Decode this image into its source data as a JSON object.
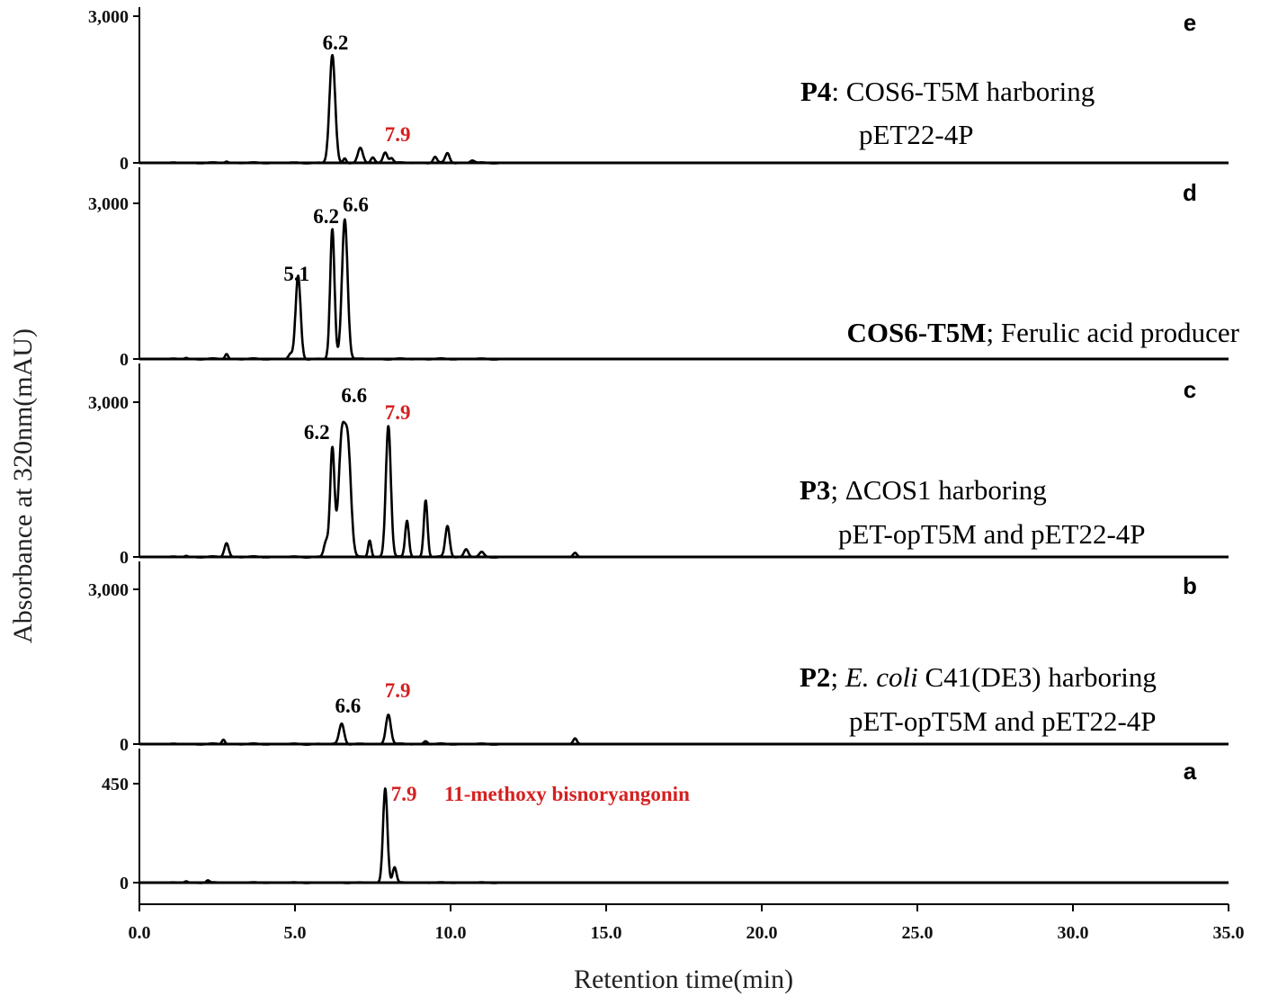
{
  "chart_data": {
    "type": "line",
    "xlabel": "Retention  time(min)",
    "ylabel": "Absorbance at 320nm(mAU)",
    "xlim": [
      0,
      35
    ],
    "x_ticks": [
      "0.0",
      "5.0",
      "10.0",
      "15.0",
      "20.0",
      "25.0",
      "30.0",
      "35.0"
    ],
    "grid": false,
    "colors": {
      "trace": "#000000",
      "highlight": "#d62020",
      "text": "#000000",
      "axis": "#000000"
    },
    "panels": [
      {
        "id": "e",
        "letter": "e",
        "ylim": [
          0,
          3000
        ],
        "y_ticks": [
          "3,000",
          "0"
        ],
        "annotation": {
          "bold": "P4",
          "rest": ": COS6-T5M harboring",
          "line2": "pET22-4P"
        },
        "peak_labels": [
          {
            "text": "6.2",
            "x": 6.2,
            "color": "#000000"
          },
          {
            "text": "7.9",
            "x": 7.9,
            "color": "#d62020"
          }
        ],
        "peaks": [
          {
            "x": 2.8,
            "h": 30,
            "w": 0.05
          },
          {
            "x": 6.2,
            "h": 2200,
            "w": 0.09
          },
          {
            "x": 6.6,
            "h": 100,
            "w": 0.05
          },
          {
            "x": 7.1,
            "h": 300,
            "w": 0.08
          },
          {
            "x": 7.5,
            "h": 110,
            "w": 0.06
          },
          {
            "x": 7.9,
            "h": 220,
            "w": 0.07
          },
          {
            "x": 8.1,
            "h": 100,
            "w": 0.06
          },
          {
            "x": 9.5,
            "h": 120,
            "w": 0.06
          },
          {
            "x": 9.9,
            "h": 200,
            "w": 0.07
          },
          {
            "x": 10.7,
            "h": 50,
            "w": 0.07
          }
        ]
      },
      {
        "id": "d",
        "letter": "d",
        "ylim": [
          0,
          3000
        ],
        "y_ticks": [
          "3,000",
          "0"
        ],
        "annotation": {
          "bold": "COS6-T5M",
          "rest": "; Ferulic acid producer",
          "line2": ""
        },
        "peak_labels": [
          {
            "text": "5.1",
            "x": 5.1,
            "color": "#000000"
          },
          {
            "text": "6.2",
            "x": 6.2,
            "color": "#000000"
          },
          {
            "text": "6.6",
            "x": 6.6,
            "color": "#000000"
          }
        ],
        "peaks": [
          {
            "x": 1.5,
            "h": 20,
            "w": 0.05
          },
          {
            "x": 2.8,
            "h": 100,
            "w": 0.05
          },
          {
            "x": 4.85,
            "h": 90,
            "w": 0.06
          },
          {
            "x": 5.1,
            "h": 1600,
            "w": 0.08
          },
          {
            "x": 6.2,
            "h": 2500,
            "w": 0.07
          },
          {
            "x": 6.6,
            "h": 2700,
            "w": 0.09
          }
        ]
      },
      {
        "id": "c",
        "letter": "c",
        "ylim": [
          0,
          3000
        ],
        "y_ticks": [
          "3,000",
          "0"
        ],
        "annotation": {
          "bold": "P3",
          "rest": "; ΔCOS1 harboring",
          "line2": "pET-opT5M  and pET22-4P"
        },
        "peak_labels": [
          {
            "text": "6.2",
            "x": 6.2,
            "color": "#000000"
          },
          {
            "text": "6.6",
            "x": 6.6,
            "color": "#000000"
          },
          {
            "text": "7.9",
            "x": 7.9,
            "color": "#d62020"
          }
        ],
        "peaks": [
          {
            "x": 1.5,
            "h": 20,
            "w": 0.05
          },
          {
            "x": 2.8,
            "h": 270,
            "w": 0.07
          },
          {
            "x": 6.0,
            "h": 300,
            "w": 0.07
          },
          {
            "x": 6.2,
            "h": 2100,
            "w": 0.07
          },
          {
            "x": 6.5,
            "h": 2200,
            "w": 0.1
          },
          {
            "x": 6.7,
            "h": 2100,
            "w": 0.1
          },
          {
            "x": 7.4,
            "h": 320,
            "w": 0.05
          },
          {
            "x": 8.0,
            "h": 2550,
            "w": 0.08
          },
          {
            "x": 8.6,
            "h": 700,
            "w": 0.06
          },
          {
            "x": 9.2,
            "h": 1100,
            "w": 0.06
          },
          {
            "x": 9.9,
            "h": 600,
            "w": 0.07
          },
          {
            "x": 10.5,
            "h": 150,
            "w": 0.07
          },
          {
            "x": 11.0,
            "h": 90,
            "w": 0.07
          },
          {
            "x": 14.0,
            "h": 80,
            "w": 0.06
          }
        ]
      },
      {
        "id": "b",
        "letter": "b",
        "ylim": [
          0,
          3000
        ],
        "y_ticks": [
          "3,000",
          "0"
        ],
        "annotation": {
          "bold": "P2",
          "rest": "; ",
          "italic": "E. coli",
          "rest2": " C41(DE3) harboring",
          "line2": "pET-opT5M  and pET22-4P"
        },
        "peak_labels": [
          {
            "text": "6.6",
            "x": 6.6,
            "color": "#000000"
          },
          {
            "text": "7.9",
            "x": 7.9,
            "color": "#d62020"
          }
        ],
        "peaks": [
          {
            "x": 2.7,
            "h": 90,
            "w": 0.05
          },
          {
            "x": 6.5,
            "h": 400,
            "w": 0.08
          },
          {
            "x": 8.0,
            "h": 580,
            "w": 0.08
          },
          {
            "x": 9.2,
            "h": 60,
            "w": 0.06
          },
          {
            "x": 14.0,
            "h": 110,
            "w": 0.06
          }
        ]
      },
      {
        "id": "a",
        "letter": "a",
        "ylim": [
          0,
          450
        ],
        "y_ticks": [
          "450",
          "0"
        ],
        "annotation": {
          "bold": "",
          "rest": "",
          "line2": ""
        },
        "peak_labels": [
          {
            "text": "7.9",
            "x": 7.9,
            "color": "#d62020"
          },
          {
            "text": "11-methoxy bisnoryangonin",
            "x": 9.7,
            "color": "#d62020"
          }
        ],
        "peaks": [
          {
            "x": 1.5,
            "h": 6,
            "w": 0.05
          },
          {
            "x": 2.2,
            "h": 10,
            "w": 0.05
          },
          {
            "x": 7.9,
            "h": 430,
            "w": 0.07
          },
          {
            "x": 8.2,
            "h": 70,
            "w": 0.06
          }
        ]
      }
    ]
  }
}
